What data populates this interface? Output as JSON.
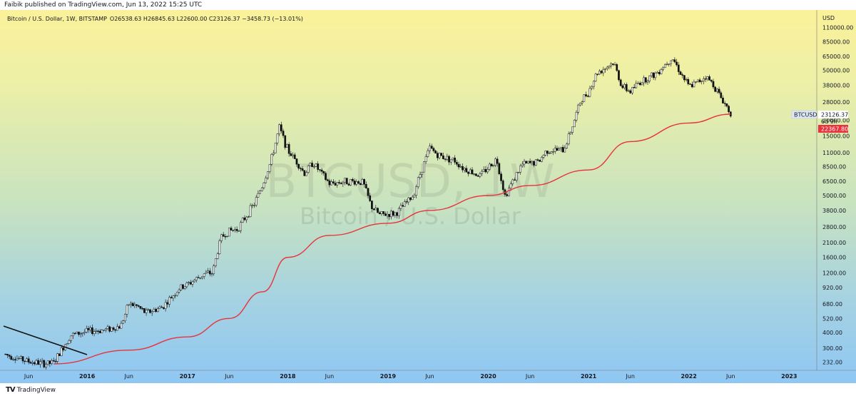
{
  "header": {
    "published": "Faibik published on TradingView.com, Jun 13, 2022 15:25 UTC"
  },
  "legend": {
    "symbol_line": "Bitcoin / U.S. Dollar, 1W, BITSTAMP",
    "ohlc_line": "O26538.63  H26845.63  L22600.00  C23126.37  −3458.73 (−13.01%)"
  },
  "watermark": {
    "ticker": "BTCUSD, 1W",
    "name": "Bitcoin / U.S. Dollar"
  },
  "price_axis": {
    "currency": "USD",
    "ticks": [
      "110000.00",
      "85000.00",
      "65000.00",
      "50000.00",
      "38000.00",
      "28000.00",
      "20000.00",
      "15000.00",
      "11000.00",
      "8500.00",
      "6500.00",
      "5000.00",
      "3800.00",
      "2800.00",
      "2100.00",
      "1600.00",
      "1200.00",
      "920.00",
      "680.00",
      "520.00",
      "400.00",
      "300.00",
      "232.00"
    ]
  },
  "time_axis": {
    "ticks": [
      {
        "label": "Jun",
        "year": false
      },
      {
        "label": "2016",
        "year": true
      },
      {
        "label": "Jun",
        "year": false
      },
      {
        "label": "2017",
        "year": true
      },
      {
        "label": "Jun",
        "year": false
      },
      {
        "label": "2018",
        "year": true
      },
      {
        "label": "Jun",
        "year": false
      },
      {
        "label": "2019",
        "year": true
      },
      {
        "label": "Jun",
        "year": false
      },
      {
        "label": "2020",
        "year": true
      },
      {
        "label": "Jun",
        "year": false
      },
      {
        "label": "2021",
        "year": true
      },
      {
        "label": "Jun",
        "year": false
      },
      {
        "label": "2022",
        "year": true
      },
      {
        "label": "Jun",
        "year": false
      },
      {
        "label": "2023",
        "year": true
      }
    ]
  },
  "price_labels": {
    "symbol": "BTCUSD",
    "last_price": "23126.37",
    "countdown": "6d 9h",
    "ma_value": "22367.80"
  },
  "colors": {
    "up": "#ffffff",
    "down": "#111111",
    "ma": "#e8323c",
    "trendline": "#111111",
    "ma_label_bg": "#e8323c",
    "price_label_bg": "#ffffff"
  },
  "chart_data": {
    "type": "candlestick",
    "title": "Bitcoin / U.S. Dollar",
    "interval": "1W",
    "exchange": "BITSTAMP",
    "scale": "log",
    "ylim": [
      200,
      130000
    ],
    "x_range": [
      "2015-03",
      "2023-02"
    ],
    "price_path": [
      [
        "2015-03",
        270
      ],
      [
        "2015-06",
        235
      ],
      [
        "2015-08",
        225
      ],
      [
        "2015-09",
        230
      ],
      [
        "2015-11",
        380
      ],
      [
        "2016-01",
        410
      ],
      [
        "2016-03",
        420
      ],
      [
        "2016-05",
        450
      ],
      [
        "2016-06",
        680
      ],
      [
        "2016-07",
        650
      ],
      [
        "2016-08",
        575
      ],
      [
        "2016-10",
        640
      ],
      [
        "2016-12",
        900
      ],
      [
        "2017-01",
        970
      ],
      [
        "2017-03",
        1180
      ],
      [
        "2017-04",
        1200
      ],
      [
        "2017-05",
        2300
      ],
      [
        "2017-06",
        2600
      ],
      [
        "2017-07",
        2700
      ],
      [
        "2017-09",
        4300
      ],
      [
        "2017-10",
        6100
      ],
      [
        "2017-11",
        9500
      ],
      [
        "2017-12",
        17500
      ],
      [
        "2018-01",
        11500
      ],
      [
        "2018-02",
        9500
      ],
      [
        "2018-03",
        7500
      ],
      [
        "2018-04",
        9200
      ],
      [
        "2018-06",
        6200
      ],
      [
        "2018-08",
        6500
      ],
      [
        "2018-10",
        6400
      ],
      [
        "2018-11",
        4100
      ],
      [
        "2018-12",
        3500
      ],
      [
        "2019-02",
        3600
      ],
      [
        "2019-04",
        5000
      ],
      [
        "2019-05",
        8000
      ],
      [
        "2019-06",
        12000
      ],
      [
        "2019-07",
        10500
      ],
      [
        "2019-09",
        9500
      ],
      [
        "2019-10",
        8300
      ],
      [
        "2019-12",
        7200
      ],
      [
        "2020-02",
        9800
      ],
      [
        "2020-03",
        5000
      ],
      [
        "2020-05",
        8800
      ],
      [
        "2020-07",
        9300
      ],
      [
        "2020-08",
        11500
      ],
      [
        "2020-10",
        11500
      ],
      [
        "2020-11",
        17500
      ],
      [
        "2020-12",
        28000
      ],
      [
        "2021-01",
        34000
      ],
      [
        "2021-02",
        48000
      ],
      [
        "2021-04",
        58000
      ],
      [
        "2021-05",
        37000
      ],
      [
        "2021-06",
        34000
      ],
      [
        "2021-07",
        40000
      ],
      [
        "2021-09",
        47000
      ],
      [
        "2021-11",
        64000
      ],
      [
        "2021-12",
        48000
      ],
      [
        "2022-01",
        37000
      ],
      [
        "2022-02",
        40000
      ],
      [
        "2022-03",
        45000
      ],
      [
        "2022-04",
        38000
      ],
      [
        "2022-05",
        29000
      ],
      [
        "2022-06",
        23126
      ]
    ],
    "ma_path": [
      [
        "2015-09",
        225
      ],
      [
        "2016-06",
        290
      ],
      [
        "2017-01",
        370
      ],
      [
        "2017-06",
        520
      ],
      [
        "2017-10",
        850
      ],
      [
        "2018-01",
        1600
      ],
      [
        "2018-06",
        2400
      ],
      [
        "2019-01",
        3000
      ],
      [
        "2019-06",
        3800
      ],
      [
        "2020-01",
        5000
      ],
      [
        "2020-06",
        6000
      ],
      [
        "2021-01",
        8000
      ],
      [
        "2021-06",
        13500
      ],
      [
        "2022-01",
        19000
      ],
      [
        "2022-06",
        22367.8
      ]
    ],
    "last": {
      "open": 26538.63,
      "high": 26845.63,
      "low": 22600.0,
      "close": 23126.37,
      "change": -3458.73,
      "change_pct": -13.01
    }
  }
}
